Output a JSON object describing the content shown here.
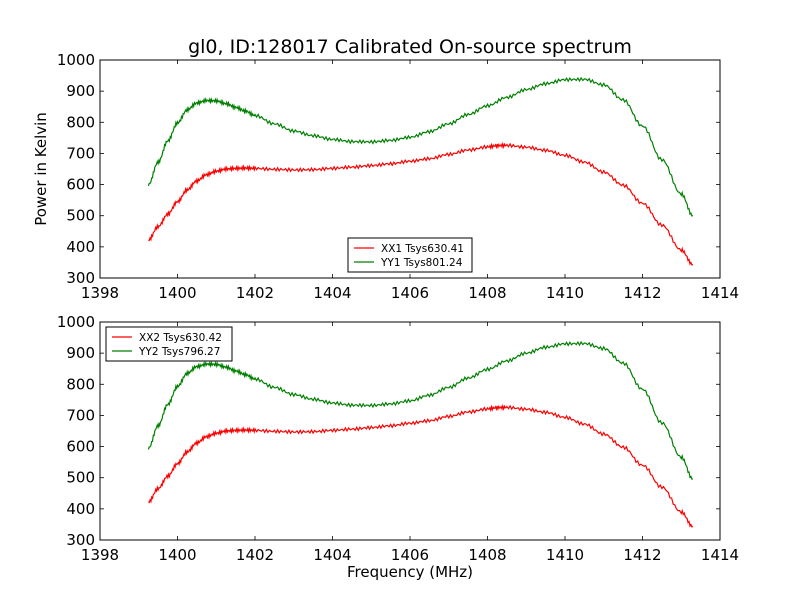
{
  "figure": {
    "title": "gl0, ID:128017 Calibrated On-source spectrum",
    "xlabel": "Frequency (MHz)",
    "ylabel": "Power in Kelvin"
  },
  "chart_data": [
    {
      "type": "line",
      "title": "gl0, ID:128017 Calibrated On-source spectrum",
      "xlabel": "",
      "ylabel": "Power in Kelvin",
      "xlim": [
        1398,
        1414
      ],
      "ylim": [
        300,
        1000
      ],
      "xticks": [
        1398,
        1400,
        1402,
        1404,
        1406,
        1408,
        1410,
        1412,
        1414
      ],
      "yticks": [
        300,
        400,
        500,
        600,
        700,
        800,
        900,
        1000
      ],
      "grid": false,
      "legend": "lower-center",
      "series": [
        {
          "name": "XX1 Tsys630.41",
          "color": "#ff0000",
          "x": [
            1399.25,
            1399.5,
            1399.75,
            1400.0,
            1400.25,
            1400.5,
            1400.75,
            1401.0,
            1401.25,
            1401.5,
            1401.75,
            1402.0,
            1402.5,
            1403.0,
            1403.5,
            1404.0,
            1404.5,
            1405.0,
            1405.5,
            1406.0,
            1406.5,
            1407.0,
            1407.5,
            1408.0,
            1408.25,
            1408.5,
            1409.0,
            1409.5,
            1410.0,
            1410.5,
            1411.0,
            1411.5,
            1412.0,
            1412.5,
            1413.0,
            1413.3
          ],
          "y": [
            422,
            465,
            505,
            545,
            583,
            612,
            632,
            643,
            650,
            652,
            653,
            652,
            649,
            647,
            648,
            652,
            656,
            661,
            667,
            675,
            683,
            697,
            711,
            721,
            725,
            726,
            720,
            710,
            694,
            672,
            640,
            598,
            540,
            470,
            390,
            343
          ]
        },
        {
          "name": "YY1 Tsys801.24",
          "color": "#008000",
          "x": [
            1399.25,
            1399.5,
            1399.75,
            1400.0,
            1400.25,
            1400.5,
            1400.75,
            1401.0,
            1401.25,
            1401.5,
            1401.75,
            1402.0,
            1402.5,
            1403.0,
            1403.5,
            1404.0,
            1404.5,
            1405.0,
            1405.5,
            1406.0,
            1406.5,
            1407.0,
            1407.5,
            1408.0,
            1408.5,
            1409.0,
            1409.5,
            1410.0,
            1410.5,
            1411.0,
            1411.5,
            1412.0,
            1412.5,
            1413.0,
            1413.3
          ],
          "y": [
            600,
            672,
            740,
            798,
            840,
            862,
            870,
            869,
            860,
            848,
            836,
            822,
            795,
            772,
            757,
            745,
            738,
            737,
            742,
            752,
            770,
            795,
            825,
            853,
            880,
            905,
            924,
            937,
            938,
            920,
            872,
            788,
            680,
            570,
            500
          ]
        }
      ]
    },
    {
      "type": "line",
      "title": "",
      "xlabel": "Frequency (MHz)",
      "ylabel": "",
      "xlim": [
        1398,
        1414
      ],
      "ylim": [
        300,
        1000
      ],
      "xticks": [
        1398,
        1400,
        1402,
        1404,
        1406,
        1408,
        1410,
        1412,
        1414
      ],
      "yticks": [
        300,
        400,
        500,
        600,
        700,
        800,
        900,
        1000
      ],
      "grid": false,
      "legend": "upper-left",
      "series": [
        {
          "name": "XX2 Tsys630.42",
          "color": "#ff0000",
          "x": [
            1399.25,
            1399.5,
            1399.75,
            1400.0,
            1400.25,
            1400.5,
            1400.75,
            1401.0,
            1401.25,
            1401.5,
            1401.75,
            1402.0,
            1402.5,
            1403.0,
            1403.5,
            1404.0,
            1404.5,
            1405.0,
            1405.5,
            1406.0,
            1406.5,
            1407.0,
            1407.5,
            1408.0,
            1408.25,
            1408.5,
            1409.0,
            1409.5,
            1410.0,
            1410.5,
            1411.0,
            1411.5,
            1412.0,
            1412.5,
            1413.0,
            1413.3
          ],
          "y": [
            422,
            465,
            505,
            545,
            583,
            612,
            632,
            643,
            650,
            652,
            653,
            652,
            649,
            647,
            648,
            652,
            656,
            661,
            667,
            675,
            683,
            697,
            711,
            721,
            725,
            726,
            720,
            710,
            694,
            672,
            640,
            598,
            540,
            470,
            390,
            343
          ]
        },
        {
          "name": "YY2 Tsys796.27",
          "color": "#008000",
          "x": [
            1399.25,
            1399.5,
            1399.75,
            1400.0,
            1400.25,
            1400.5,
            1400.75,
            1401.0,
            1401.25,
            1401.5,
            1401.75,
            1402.0,
            1402.5,
            1403.0,
            1403.5,
            1404.0,
            1404.5,
            1405.0,
            1405.5,
            1406.0,
            1406.5,
            1407.0,
            1407.5,
            1408.0,
            1408.5,
            1409.0,
            1409.5,
            1410.0,
            1410.5,
            1411.0,
            1411.5,
            1412.0,
            1412.5,
            1413.0,
            1413.3
          ],
          "y": [
            595,
            667,
            735,
            793,
            835,
            857,
            865,
            864,
            855,
            843,
            831,
            817,
            790,
            767,
            752,
            740,
            733,
            732,
            737,
            747,
            765,
            790,
            820,
            848,
            875,
            900,
            919,
            930,
            931,
            915,
            868,
            784,
            676,
            566,
            496
          ]
        }
      ]
    }
  ]
}
